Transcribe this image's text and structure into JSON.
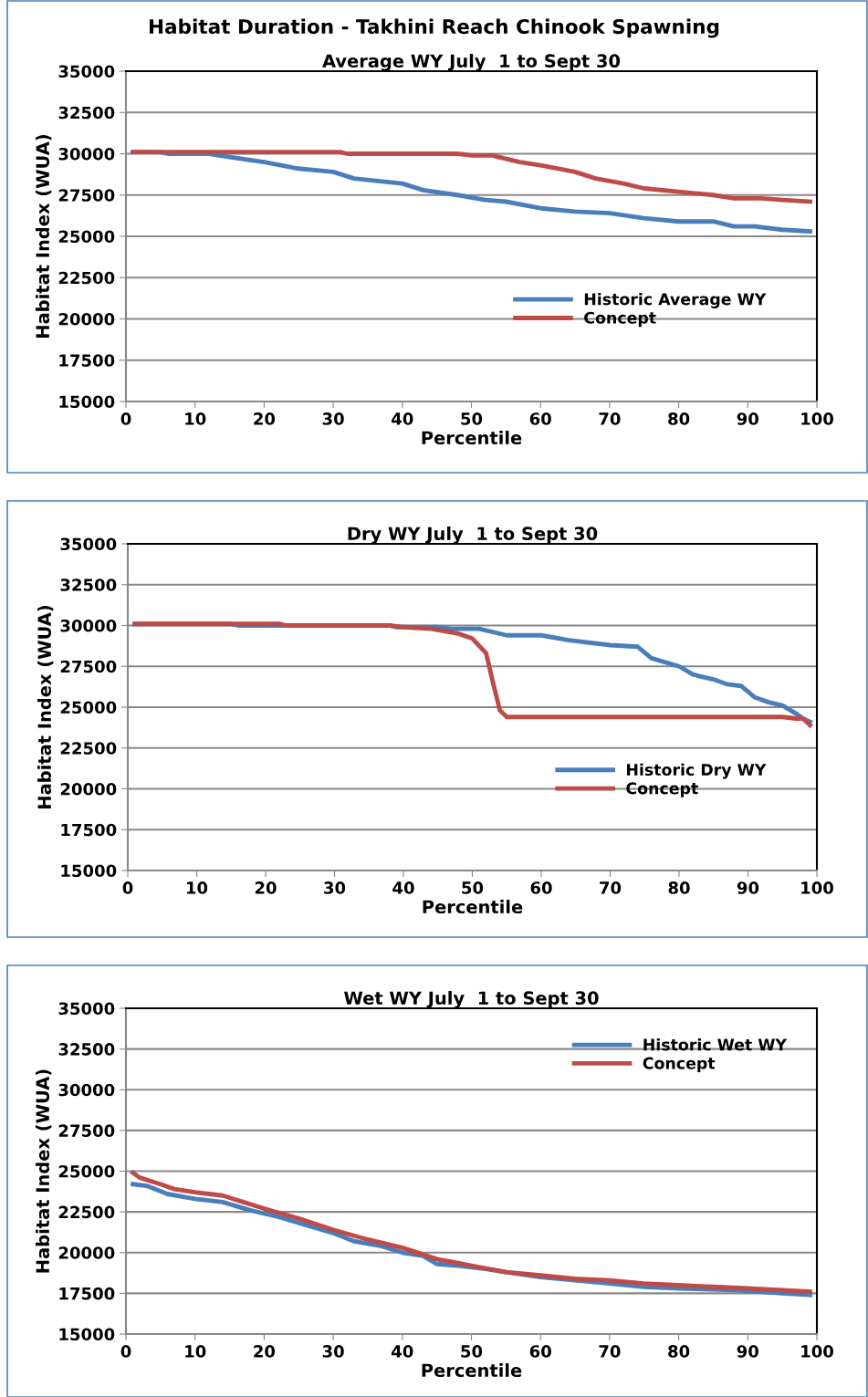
{
  "chart_data": [
    {
      "type": "line",
      "title": "Habitat Duration - Takhini Reach Chinook Spawning",
      "subtitle": "Average WY July  1 to Sept 30",
      "xlabel": "Percentile",
      "ylabel": "Habitat Index (WUA)",
      "xlim": [
        0,
        100
      ],
      "xticks": [
        0,
        10,
        20,
        30,
        40,
        50,
        60,
        70,
        80,
        90,
        100
      ],
      "ylim": [
        15000,
        35000
      ],
      "yticks": [
        15000,
        17500,
        20000,
        22500,
        25000,
        27500,
        30000,
        32500,
        35000
      ],
      "grid": "y",
      "legend": "right",
      "marker": "none",
      "line_style": "solid",
      "series": [
        {
          "name": "Historic Average WY",
          "color": "#4a7ebb",
          "x": [
            1,
            5,
            6,
            12,
            15,
            20,
            25,
            30,
            33,
            40,
            43,
            48,
            52,
            55,
            60,
            65,
            70,
            75,
            80,
            85,
            88,
            91,
            95,
            99
          ],
          "values": [
            30100,
            30100,
            30000,
            30000,
            29800,
            29500,
            29100,
            28900,
            28500,
            28200,
            27800,
            27500,
            27200,
            27100,
            26700,
            26500,
            26400,
            26100,
            25900,
            25900,
            25600,
            25600,
            25400,
            25300
          ]
        },
        {
          "name": "Concept",
          "color": "#be4b48",
          "x": [
            1,
            31,
            32,
            48,
            50,
            53,
            57,
            60,
            65,
            68,
            72,
            75,
            80,
            85,
            88,
            92,
            95,
            99
          ],
          "values": [
            30100,
            30100,
            30000,
            30000,
            29900,
            29900,
            29500,
            29300,
            28900,
            28500,
            28200,
            27900,
            27700,
            27500,
            27300,
            27300,
            27200,
            27100
          ]
        }
      ]
    },
    {
      "type": "line",
      "subtitle": "Dry WY July  1 to Sept 30",
      "xlabel": "Percentile",
      "ylabel": "Habitat Index (WUA)",
      "xlim": [
        0,
        100
      ],
      "xticks": [
        0,
        10,
        20,
        30,
        40,
        50,
        60,
        70,
        80,
        90,
        100
      ],
      "ylim": [
        15000,
        35000
      ],
      "yticks": [
        15000,
        17500,
        20000,
        22500,
        25000,
        27500,
        30000,
        32500,
        35000
      ],
      "grid": "y",
      "legend": "right",
      "marker": "none",
      "line_style": "solid",
      "series": [
        {
          "name": "Historic Dry WY",
          "color": "#4a7ebb",
          "x": [
            1,
            15,
            16,
            38,
            39,
            45,
            47,
            51,
            55,
            60,
            64,
            70,
            74,
            76,
            80,
            82,
            85,
            87,
            89,
            91,
            93,
            95,
            97,
            98,
            99
          ],
          "values": [
            30100,
            30100,
            30000,
            30000,
            29900,
            29900,
            29800,
            29800,
            29400,
            29400,
            29100,
            28800,
            28700,
            28000,
            27500,
            27000,
            26700,
            26400,
            26300,
            25600,
            25300,
            25100,
            24600,
            24300,
            24100
          ]
        },
        {
          "name": "Concept",
          "color": "#be4b48",
          "x": [
            1,
            22,
            23,
            38,
            40,
            44,
            48,
            50,
            52,
            53,
            54,
            55,
            95,
            97,
            98,
            99
          ],
          "values": [
            30100,
            30100,
            30000,
            30000,
            29900,
            29800,
            29500,
            29200,
            28300,
            26500,
            24800,
            24400,
            24400,
            24300,
            24300,
            23900
          ]
        }
      ]
    },
    {
      "type": "line",
      "subtitle": "Wet WY July  1 to Sept 30",
      "xlabel": "Percentile",
      "ylabel": "Habitat Index (WUA)",
      "xlim": [
        0,
        100
      ],
      "xticks": [
        0,
        10,
        20,
        30,
        40,
        50,
        60,
        70,
        80,
        90,
        100
      ],
      "ylim": [
        15000,
        35000
      ],
      "yticks": [
        15000,
        17500,
        20000,
        22500,
        25000,
        27500,
        30000,
        32500,
        35000
      ],
      "grid": "y",
      "legend": "top right",
      "marker": "none",
      "line_style": "solid",
      "series": [
        {
          "name": "Historic Wet WY",
          "color": "#4a7ebb",
          "x": [
            1,
            3,
            6,
            10,
            14,
            18,
            22,
            26,
            30,
            33,
            37,
            40,
            43,
            45,
            48,
            52,
            55,
            60,
            65,
            70,
            75,
            80,
            88,
            95,
            99
          ],
          "values": [
            24200,
            24100,
            23600,
            23300,
            23100,
            22600,
            22200,
            21700,
            21200,
            20700,
            20400,
            20000,
            19800,
            19300,
            19200,
            19000,
            18800,
            18500,
            18300,
            18100,
            17900,
            17800,
            17700,
            17500,
            17400
          ]
        },
        {
          "name": "Concept",
          "color": "#be4b48",
          "x": [
            1,
            2,
            5,
            7,
            10,
            14,
            17,
            20,
            25,
            30,
            35,
            40,
            45,
            50,
            55,
            60,
            65,
            70,
            75,
            80,
            85,
            90,
            95,
            99
          ],
          "values": [
            24900,
            24600,
            24200,
            23900,
            23700,
            23500,
            23100,
            22700,
            22100,
            21400,
            20800,
            20300,
            19600,
            19200,
            18800,
            18600,
            18400,
            18300,
            18100,
            18000,
            17900,
            17800,
            17700,
            17600
          ]
        }
      ]
    }
  ]
}
